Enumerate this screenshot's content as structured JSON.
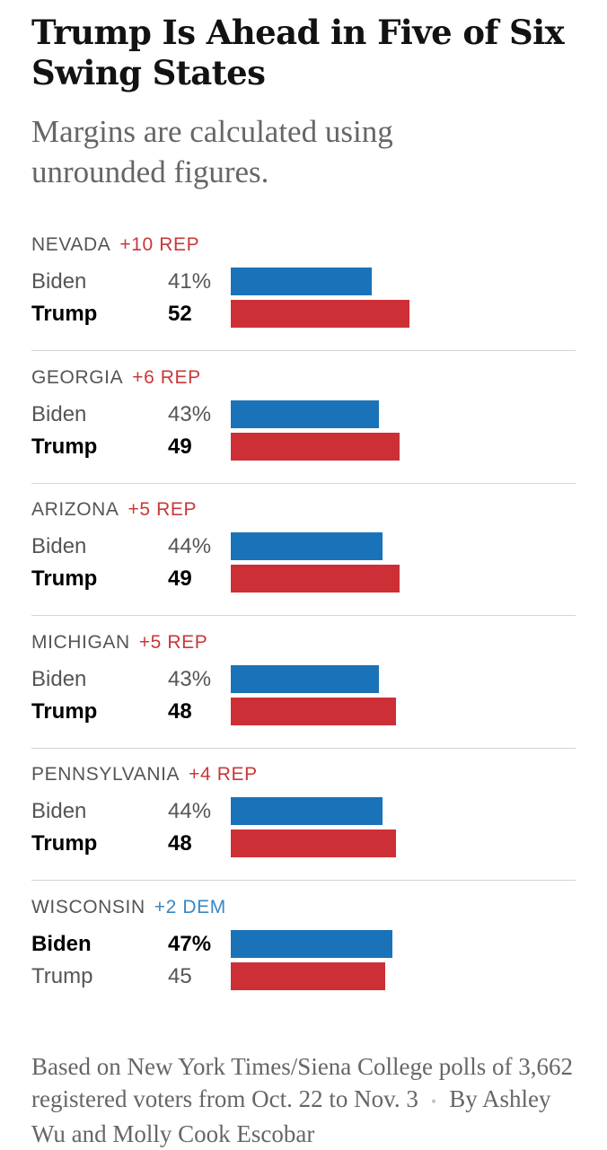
{
  "title": "Trump Is Ahead in Five of Six Swing States",
  "subtitle": "Margins are calculated using unrounded figures.",
  "colors": {
    "biden": "#1a73b9",
    "trump": "#cc3036",
    "rep_text": "#c9383a",
    "dem_text": "#3a86c2"
  },
  "chart_data": {
    "type": "bar",
    "orientation": "horizontal",
    "unit": "percent",
    "xlim": [
      0,
      100
    ],
    "categories": [
      "NEVADA",
      "GEORGIA",
      "ARIZONA",
      "MICHIGAN",
      "PENNSYLVANIA",
      "WISCONSIN"
    ],
    "series": [
      {
        "name": "Biden",
        "values": [
          41,
          43,
          44,
          43,
          44,
          47
        ]
      },
      {
        "name": "Trump",
        "values": [
          52,
          49,
          49,
          48,
          48,
          45
        ]
      }
    ],
    "states": [
      {
        "name": "NEVADA",
        "margin": "+10 REP",
        "party": "rep",
        "rows": [
          {
            "candidate": "Biden",
            "label": "41%",
            "value": 41,
            "leader": false
          },
          {
            "candidate": "Trump",
            "label": "52",
            "value": 52,
            "leader": true
          }
        ]
      },
      {
        "name": "GEORGIA",
        "margin": "+6 REP",
        "party": "rep",
        "rows": [
          {
            "candidate": "Biden",
            "label": "43%",
            "value": 43,
            "leader": false
          },
          {
            "candidate": "Trump",
            "label": "49",
            "value": 49,
            "leader": true
          }
        ]
      },
      {
        "name": "ARIZONA",
        "margin": "+5 REP",
        "party": "rep",
        "rows": [
          {
            "candidate": "Biden",
            "label": "44%",
            "value": 44,
            "leader": false
          },
          {
            "candidate": "Trump",
            "label": "49",
            "value": 49,
            "leader": true
          }
        ]
      },
      {
        "name": "MICHIGAN",
        "margin": "+5 REP",
        "party": "rep",
        "rows": [
          {
            "candidate": "Biden",
            "label": "43%",
            "value": 43,
            "leader": false
          },
          {
            "candidate": "Trump",
            "label": "48",
            "value": 48,
            "leader": true
          }
        ]
      },
      {
        "name": "PENNSYLVANIA",
        "margin": "+4 REP",
        "party": "rep",
        "rows": [
          {
            "candidate": "Biden",
            "label": "44%",
            "value": 44,
            "leader": false
          },
          {
            "candidate": "Trump",
            "label": "48",
            "value": 48,
            "leader": true
          }
        ]
      },
      {
        "name": "WISCONSIN",
        "margin": "+2 DEM",
        "party": "dem",
        "rows": [
          {
            "candidate": "Biden",
            "label": "47%",
            "value": 47,
            "leader": true
          },
          {
            "candidate": "Trump",
            "label": "45",
            "value": 45,
            "leader": false
          }
        ]
      }
    ]
  },
  "footer": {
    "source": "Based on New York Times/Siena College polls of 3,662 registered voters from Oct. 22 to Nov. 3",
    "separator": "•",
    "byline": "By Ashley Wu and Molly Cook Escobar"
  }
}
